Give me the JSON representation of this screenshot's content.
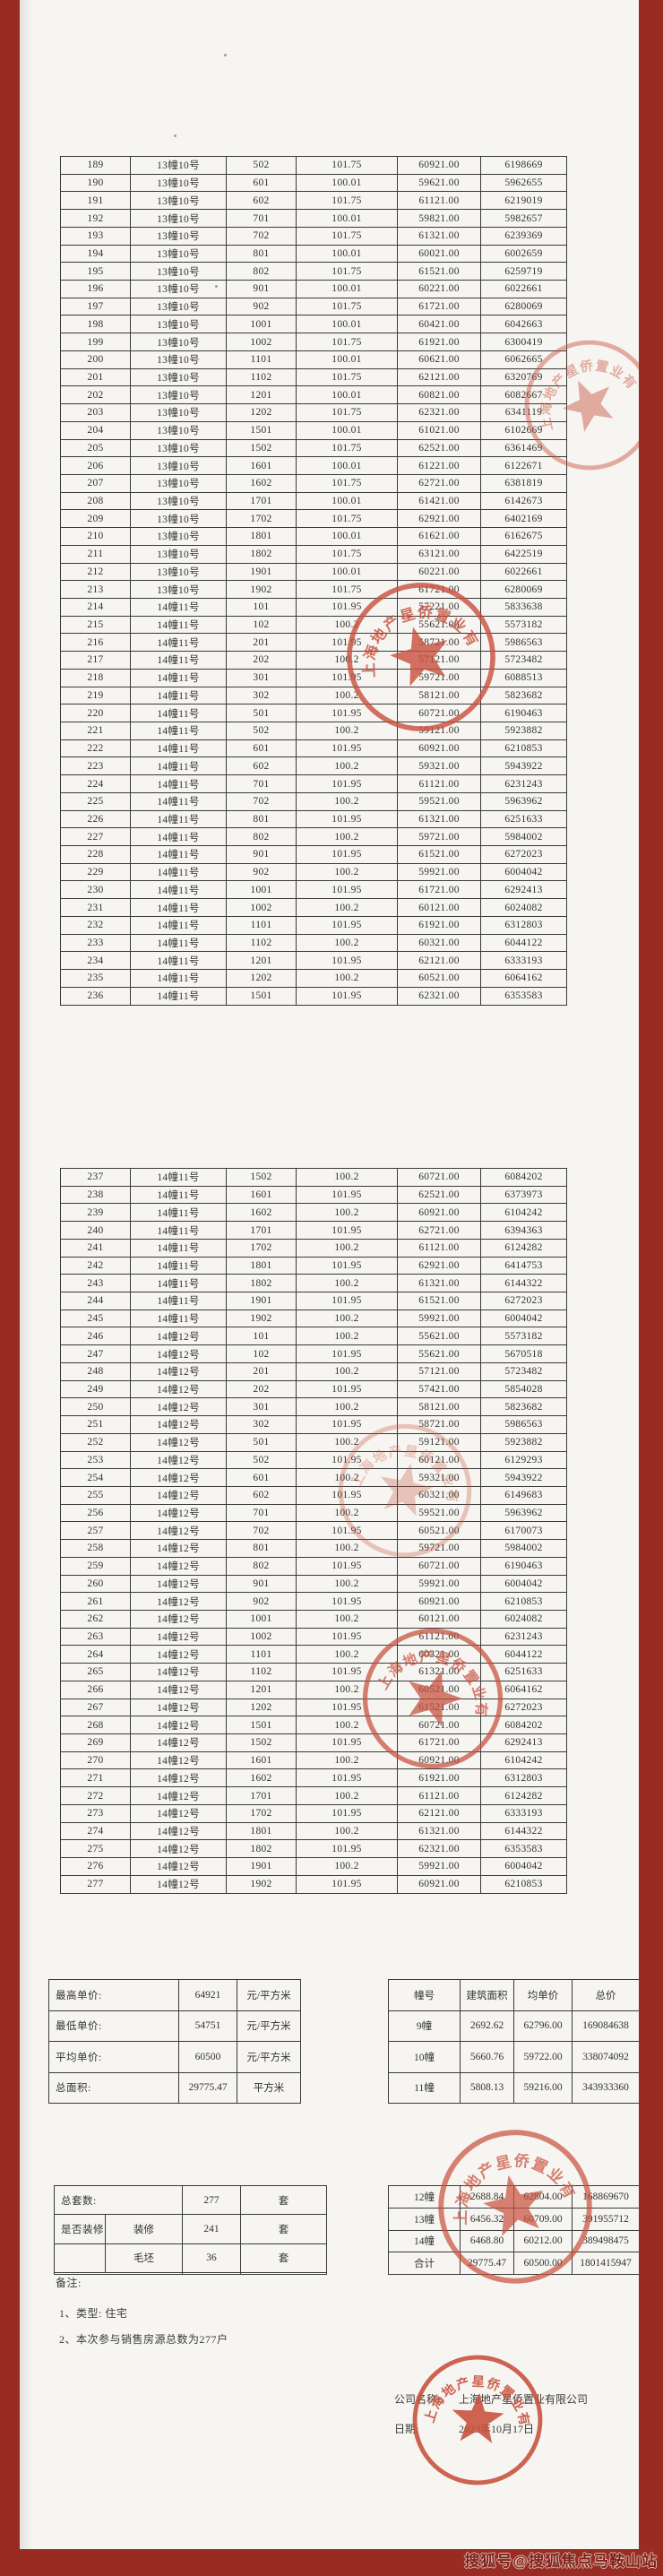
{
  "colors": {
    "background_red": "#992b22",
    "page": "#f6f5f1",
    "stamp_red": "#c8503c",
    "table_border": "#3a3a3a",
    "ink": "#33332f"
  },
  "main_table_1": {
    "rows": [
      [
        "189",
        "13幢10号",
        "502",
        "101.75",
        "60921.00",
        "6198669"
      ],
      [
        "190",
        "13幢10号",
        "601",
        "100.01",
        "59621.00",
        "5962655"
      ],
      [
        "191",
        "13幢10号",
        "602",
        "101.75",
        "61121.00",
        "6219019"
      ],
      [
        "192",
        "13幢10号",
        "701",
        "100.01",
        "59821.00",
        "5982657"
      ],
      [
        "193",
        "13幢10号",
        "702",
        "101.75",
        "61321.00",
        "6239369"
      ],
      [
        "194",
        "13幢10号",
        "801",
        "100.01",
        "60021.00",
        "6002659"
      ],
      [
        "195",
        "13幢10号",
        "802",
        "101.75",
        "61521.00",
        "6259719"
      ],
      [
        "196",
        "13幢10号",
        "901",
        "100.01",
        "60221.00",
        "6022661"
      ],
      [
        "197",
        "13幢10号",
        "902",
        "101.75",
        "61721.00",
        "6280069"
      ],
      [
        "198",
        "13幢10号",
        "1001",
        "100.01",
        "60421.00",
        "6042663"
      ],
      [
        "199",
        "13幢10号",
        "1002",
        "101.75",
        "61921.00",
        "6300419"
      ],
      [
        "200",
        "13幢10号",
        "1101",
        "100.01",
        "60621.00",
        "6062665"
      ],
      [
        "201",
        "13幢10号",
        "1102",
        "101.75",
        "62121.00",
        "6320769"
      ],
      [
        "202",
        "13幢10号",
        "1201",
        "100.01",
        "60821.00",
        "6082667"
      ],
      [
        "203",
        "13幢10号",
        "1202",
        "101.75",
        "62321.00",
        "6341119"
      ],
      [
        "204",
        "13幢10号",
        "1501",
        "100.01",
        "61021.00",
        "6102669"
      ],
      [
        "205",
        "13幢10号",
        "1502",
        "101.75",
        "62521.00",
        "6361469"
      ],
      [
        "206",
        "13幢10号",
        "1601",
        "100.01",
        "61221.00",
        "6122671"
      ],
      [
        "207",
        "13幢10号",
        "1602",
        "101.75",
        "62721.00",
        "6381819"
      ],
      [
        "208",
        "13幢10号",
        "1701",
        "100.01",
        "61421.00",
        "6142673"
      ],
      [
        "209",
        "13幢10号",
        "1702",
        "101.75",
        "62921.00",
        "6402169"
      ],
      [
        "210",
        "13幢10号",
        "1801",
        "100.01",
        "61621.00",
        "6162675"
      ],
      [
        "211",
        "13幢10号",
        "1802",
        "101.75",
        "63121.00",
        "6422519"
      ],
      [
        "212",
        "13幢10号",
        "1901",
        "100.01",
        "60221.00",
        "6022661"
      ],
      [
        "213",
        "13幢10号",
        "1902",
        "101.75",
        "61721.00",
        "6280069"
      ],
      [
        "214",
        "14幢11号",
        "101",
        "101.95",
        "57221.00",
        "5833638"
      ],
      [
        "215",
        "14幢11号",
        "102",
        "100.2",
        "55621.00",
        "5573182"
      ],
      [
        "216",
        "14幢11号",
        "201",
        "101.95",
        "58721.00",
        "5986563"
      ],
      [
        "217",
        "14幢11号",
        "202",
        "100.2",
        "57121.00",
        "5723482"
      ],
      [
        "218",
        "14幢11号",
        "301",
        "101.95",
        "59721.00",
        "6088513"
      ],
      [
        "219",
        "14幢11号",
        "302",
        "100.2",
        "58121.00",
        "5823682"
      ],
      [
        "220",
        "14幢11号",
        "501",
        "101.95",
        "60721.00",
        "6190463"
      ],
      [
        "221",
        "14幢11号",
        "502",
        "100.2",
        "59121.00",
        "5923882"
      ],
      [
        "222",
        "14幢11号",
        "601",
        "101.95",
        "60921.00",
        "6210853"
      ],
      [
        "223",
        "14幢11号",
        "602",
        "100.2",
        "59321.00",
        "5943922"
      ],
      [
        "224",
        "14幢11号",
        "701",
        "101.95",
        "61121.00",
        "6231243"
      ],
      [
        "225",
        "14幢11号",
        "702",
        "100.2",
        "59521.00",
        "5963962"
      ],
      [
        "226",
        "14幢11号",
        "801",
        "101.95",
        "61321.00",
        "6251633"
      ],
      [
        "227",
        "14幢11号",
        "802",
        "100.2",
        "59721.00",
        "5984002"
      ],
      [
        "228",
        "14幢11号",
        "901",
        "101.95",
        "61521.00",
        "6272023"
      ],
      [
        "229",
        "14幢11号",
        "902",
        "100.2",
        "59921.00",
        "6004042"
      ],
      [
        "230",
        "14幢11号",
        "1001",
        "101.95",
        "61721.00",
        "6292413"
      ],
      [
        "231",
        "14幢11号",
        "1002",
        "100.2",
        "60121.00",
        "6024082"
      ],
      [
        "232",
        "14幢11号",
        "1101",
        "101.95",
        "61921.00",
        "6312803"
      ],
      [
        "233",
        "14幢11号",
        "1102",
        "100.2",
        "60321.00",
        "6044122"
      ],
      [
        "234",
        "14幢11号",
        "1201",
        "101.95",
        "62121.00",
        "6333193"
      ],
      [
        "235",
        "14幢11号",
        "1202",
        "100.2",
        "60521.00",
        "6064162"
      ],
      [
        "236",
        "14幢11号",
        "1501",
        "101.95",
        "62321.00",
        "6353583"
      ]
    ]
  },
  "main_table_2": {
    "rows": [
      [
        "237",
        "14幢11号",
        "1502",
        "100.2",
        "60721.00",
        "6084202"
      ],
      [
        "238",
        "14幢11号",
        "1601",
        "101.95",
        "62521.00",
        "6373973"
      ],
      [
        "239",
        "14幢11号",
        "1602",
        "100.2",
        "60921.00",
        "6104242"
      ],
      [
        "240",
        "14幢11号",
        "1701",
        "101.95",
        "62721.00",
        "6394363"
      ],
      [
        "241",
        "14幢11号",
        "1702",
        "100.2",
        "61121.00",
        "6124282"
      ],
      [
        "242",
        "14幢11号",
        "1801",
        "101.95",
        "62921.00",
        "6414753"
      ],
      [
        "243",
        "14幢11号",
        "1802",
        "100.2",
        "61321.00",
        "6144322"
      ],
      [
        "244",
        "14幢11号",
        "1901",
        "101.95",
        "61521.00",
        "6272023"
      ],
      [
        "245",
        "14幢11号",
        "1902",
        "100.2",
        "59921.00",
        "6004042"
      ],
      [
        "246",
        "14幢12号",
        "101",
        "100.2",
        "55621.00",
        "5573182"
      ],
      [
        "247",
        "14幢12号",
        "102",
        "101.95",
        "55621.00",
        "5670518"
      ],
      [
        "248",
        "14幢12号",
        "201",
        "100.2",
        "57121.00",
        "5723482"
      ],
      [
        "249",
        "14幢12号",
        "202",
        "101.95",
        "57421.00",
        "5854028"
      ],
      [
        "250",
        "14幢12号",
        "301",
        "100.2",
        "58121.00",
        "5823682"
      ],
      [
        "251",
        "14幢12号",
        "302",
        "101.95",
        "58721.00",
        "5986563"
      ],
      [
        "252",
        "14幢12号",
        "501",
        "100.2",
        "59121.00",
        "5923882"
      ],
      [
        "253",
        "14幢12号",
        "502",
        "101.95",
        "60121.00",
        "6129293"
      ],
      [
        "254",
        "14幢12号",
        "601",
        "100.2",
        "59321.00",
        "5943922"
      ],
      [
        "255",
        "14幢12号",
        "602",
        "101.95",
        "60321.00",
        "6149683"
      ],
      [
        "256",
        "14幢12号",
        "701",
        "100.2",
        "59521.00",
        "5963962"
      ],
      [
        "257",
        "14幢12号",
        "702",
        "101.95",
        "60521.00",
        "6170073"
      ],
      [
        "258",
        "14幢12号",
        "801",
        "100.2",
        "59721.00",
        "5984002"
      ],
      [
        "259",
        "14幢12号",
        "802",
        "101.95",
        "60721.00",
        "6190463"
      ],
      [
        "260",
        "14幢12号",
        "901",
        "100.2",
        "59921.00",
        "6004042"
      ],
      [
        "261",
        "14幢12号",
        "902",
        "101.95",
        "60921.00",
        "6210853"
      ],
      [
        "262",
        "14幢12号",
        "1001",
        "100.2",
        "60121.00",
        "6024082"
      ],
      [
        "263",
        "14幢12号",
        "1002",
        "101.95",
        "61121.00",
        "6231243"
      ],
      [
        "264",
        "14幢12号",
        "1101",
        "100.2",
        "60321.00",
        "6044122"
      ],
      [
        "265",
        "14幢12号",
        "1102",
        "101.95",
        "61321.00",
        "6251633"
      ],
      [
        "266",
        "14幢12号",
        "1201",
        "100.2",
        "60521.00",
        "6064162"
      ],
      [
        "267",
        "14幢12号",
        "1202",
        "101.95",
        "61521.00",
        "6272023"
      ],
      [
        "268",
        "14幢12号",
        "1501",
        "100.2",
        "60721.00",
        "6084202"
      ],
      [
        "269",
        "14幢12号",
        "1502",
        "101.95",
        "61721.00",
        "6292413"
      ],
      [
        "270",
        "14幢12号",
        "1601",
        "100.2",
        "60921.00",
        "6104242"
      ],
      [
        "271",
        "14幢12号",
        "1602",
        "101.95",
        "61921.00",
        "6312803"
      ],
      [
        "272",
        "14幢12号",
        "1701",
        "100.2",
        "61121.00",
        "6124282"
      ],
      [
        "273",
        "14幢12号",
        "1702",
        "101.95",
        "62121.00",
        "6333193"
      ],
      [
        "274",
        "14幢12号",
        "1801",
        "100.2",
        "61321.00",
        "6144322"
      ],
      [
        "275",
        "14幢12号",
        "1802",
        "101.95",
        "62321.00",
        "6353583"
      ],
      [
        "276",
        "14幢12号",
        "1901",
        "100.2",
        "59921.00",
        "6004042"
      ],
      [
        "277",
        "14幢12号",
        "1902",
        "101.95",
        "60921.00",
        "6210853"
      ]
    ]
  },
  "summary_block_1": {
    "left_rows": [
      [
        "最高单价:",
        "64921",
        "元/平方米"
      ],
      [
        "最低单价:",
        "54751",
        "元/平方米"
      ],
      [
        "平均单价:",
        "60500",
        "元/平方米"
      ],
      [
        "总面积:",
        "29775.47",
        "平方米"
      ]
    ],
    "right_header": [
      "幢号",
      "建筑面积",
      "均单价",
      "总价"
    ],
    "right_rows": [
      [
        "9幢",
        "2692.62",
        "62796.00",
        "169084638"
      ],
      [
        "10幢",
        "5660.76",
        "59722.00",
        "338074092"
      ],
      [
        "11幢",
        "5808.13",
        "59216.00",
        "343933360"
      ]
    ]
  },
  "summary_block_2": {
    "left_rows": [
      [
        "总套数:",
        "277",
        "套"
      ],
      [
        "是否装修:",
        "装修",
        "241",
        "套"
      ],
      [
        "",
        "毛坯",
        "36",
        "套"
      ],
      [
        "",
        "",
        "",
        ""
      ]
    ],
    "right_rows": [
      [
        "12幢",
        "2688.84",
        "62804.00",
        "168869670"
      ],
      [
        "13幢",
        "6456.32",
        "60709.00",
        "391955712"
      ],
      [
        "14幢",
        "6468.80",
        "60212.00",
        "389498475"
      ],
      [
        "合计",
        "29775.47",
        "60500.00",
        "1801415947"
      ]
    ]
  },
  "notes": {
    "label": "备注:",
    "items": [
      "1、类型: 住宅",
      "2、本次参与销售房源总数为277户"
    ]
  },
  "footer": {
    "company_label": "公司名称:",
    "company_value": "上海地产星侨置业有限公司",
    "date_label": "日期:",
    "date_value": "2023年10月17日"
  },
  "stamp": {
    "text": "上海地产星侨置业有限公司"
  },
  "watermark": "搜狐号@搜狐焦点马鞍山站"
}
